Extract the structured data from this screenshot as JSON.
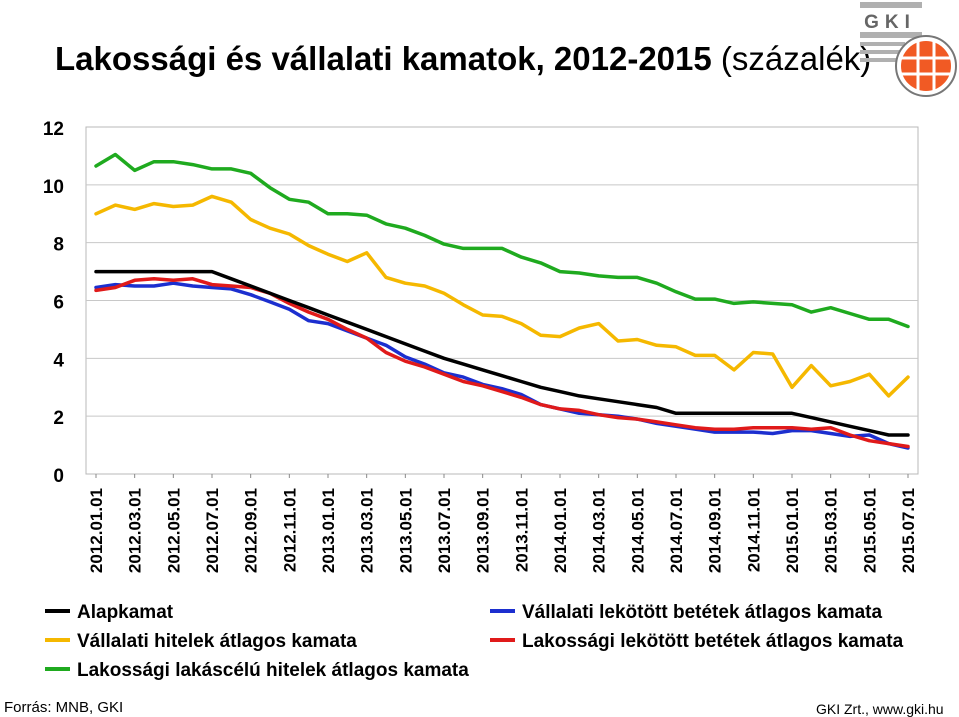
{
  "title_bold": "Lakossági és vállalati kamatok, 2012-2015",
  "title_normal": "(százalék)",
  "logo_text": "GKI",
  "source_left": "Forrás: MNB, GKI",
  "source_right": "GKI Zrt., www.gki.hu",
  "chart_data": {
    "type": "line",
    "title": "Lakossági és vállalati kamatok, 2012-2015 (százalék)",
    "ylim": [
      0,
      12
    ],
    "yticks": [
      0,
      2,
      4,
      6,
      8,
      10,
      12
    ],
    "grid": true,
    "legend_position": "bottom",
    "x": [
      "2012.01.01",
      "2012.02.01",
      "2012.03.01",
      "2012.04.01",
      "2012.05.01",
      "2012.06.01",
      "2012.07.01",
      "2012.08.01",
      "2012.09.01",
      "2012.10.01",
      "2012.11.01",
      "2012.12.01",
      "2013.01.01",
      "2013.02.01",
      "2013.03.01",
      "2013.04.01",
      "2013.05.01",
      "2013.06.01",
      "2013.07.01",
      "2013.08.01",
      "2013.09.01",
      "2013.10.01",
      "2013.11.01",
      "2013.12.01",
      "2014.01.01",
      "2014.02.01",
      "2014.03.01",
      "2014.04.01",
      "2014.05.01",
      "2014.06.01",
      "2014.07.01",
      "2014.08.01",
      "2014.09.01",
      "2014.10.01",
      "2014.11.01",
      "2014.12.01",
      "2015.01.01",
      "2015.02.01",
      "2015.03.01",
      "2015.04.01",
      "2015.05.01",
      "2015.06.01",
      "2015.07.01"
    ],
    "xtick_labels": [
      "2012.01.01",
      "2012.03.01",
      "2012.05.01",
      "2012.07.01",
      "2012.09.01",
      "2012.11.01",
      "2013.01.01",
      "2013.03.01",
      "2013.05.01",
      "2013.07.01",
      "2013.09.01",
      "2013.11.01",
      "2014.01.01",
      "2014.03.01",
      "2014.05.01",
      "2014.07.01",
      "2014.09.01",
      "2014.11.01",
      "2015.01.01",
      "2015.03.01",
      "2015.05.01",
      "2015.07.01"
    ],
    "series": [
      {
        "name": "Alapkamat",
        "color": "#000000",
        "values": [
          7.0,
          7.0,
          7.0,
          7.0,
          7.0,
          7.0,
          7.0,
          6.75,
          6.5,
          6.25,
          6.0,
          5.75,
          5.5,
          5.25,
          5.0,
          4.75,
          4.5,
          4.25,
          4.0,
          3.8,
          3.6,
          3.4,
          3.2,
          3.0,
          2.85,
          2.7,
          2.6,
          2.5,
          2.4,
          2.3,
          2.1,
          2.1,
          2.1,
          2.1,
          2.1,
          2.1,
          2.1,
          1.95,
          1.8,
          1.65,
          1.5,
          1.35,
          1.35
        ]
      },
      {
        "name": "Vállalati hitelek átlagos kamata",
        "color": "#f5b800",
        "values": [
          9.0,
          9.3,
          9.15,
          9.35,
          9.25,
          9.3,
          9.6,
          9.4,
          8.8,
          8.5,
          8.3,
          7.9,
          7.6,
          7.35,
          7.65,
          6.8,
          6.6,
          6.5,
          6.25,
          5.85,
          5.5,
          5.45,
          5.2,
          4.8,
          4.75,
          5.05,
          5.2,
          4.6,
          4.65,
          4.45,
          4.4,
          4.1,
          4.1,
          3.6,
          4.2,
          4.15,
          3.0,
          3.75,
          3.05,
          3.2,
          3.45,
          2.7,
          3.35
        ]
      },
      {
        "name": "Lakossági lakáscélú hitelek átlagos kamata",
        "color": "#1faa1f",
        "values": [
          10.65,
          11.05,
          10.5,
          10.8,
          10.8,
          10.7,
          10.55,
          10.55,
          10.4,
          9.9,
          9.5,
          9.4,
          9.0,
          9.0,
          8.95,
          8.65,
          8.5,
          8.25,
          7.95,
          7.8,
          7.8,
          7.8,
          7.5,
          7.3,
          7.0,
          6.95,
          6.85,
          6.8,
          6.8,
          6.6,
          6.3,
          6.05,
          6.05,
          5.9,
          5.95,
          5.9,
          5.85,
          5.6,
          5.75,
          5.55,
          5.35,
          5.35,
          5.1
        ]
      },
      {
        "name": "Vállalati lekötött betétek átlagos kamata",
        "color": "#1c2fcf",
        "values": [
          6.45,
          6.55,
          6.5,
          6.5,
          6.6,
          6.5,
          6.45,
          6.4,
          6.2,
          5.95,
          5.7,
          5.3,
          5.2,
          4.95,
          4.7,
          4.45,
          4.05,
          3.8,
          3.5,
          3.35,
          3.1,
          2.95,
          2.75,
          2.4,
          2.25,
          2.1,
          2.05,
          2.0,
          1.9,
          1.75,
          1.65,
          1.55,
          1.45,
          1.45,
          1.45,
          1.4,
          1.5,
          1.5,
          1.4,
          1.3,
          1.35,
          1.05,
          0.9
        ]
      },
      {
        "name": "Lakossági lekötött betétek átlagos kamata",
        "color": "#e01a1a",
        "values": [
          6.35,
          6.45,
          6.7,
          6.75,
          6.7,
          6.75,
          6.55,
          6.5,
          6.45,
          6.25,
          5.9,
          5.6,
          5.35,
          5.0,
          4.7,
          4.2,
          3.9,
          3.7,
          3.45,
          3.2,
          3.05,
          2.85,
          2.65,
          2.4,
          2.25,
          2.2,
          2.05,
          1.95,
          1.9,
          1.8,
          1.7,
          1.6,
          1.55,
          1.55,
          1.6,
          1.6,
          1.6,
          1.55,
          1.6,
          1.35,
          1.15,
          1.05,
          0.95
        ]
      }
    ]
  }
}
